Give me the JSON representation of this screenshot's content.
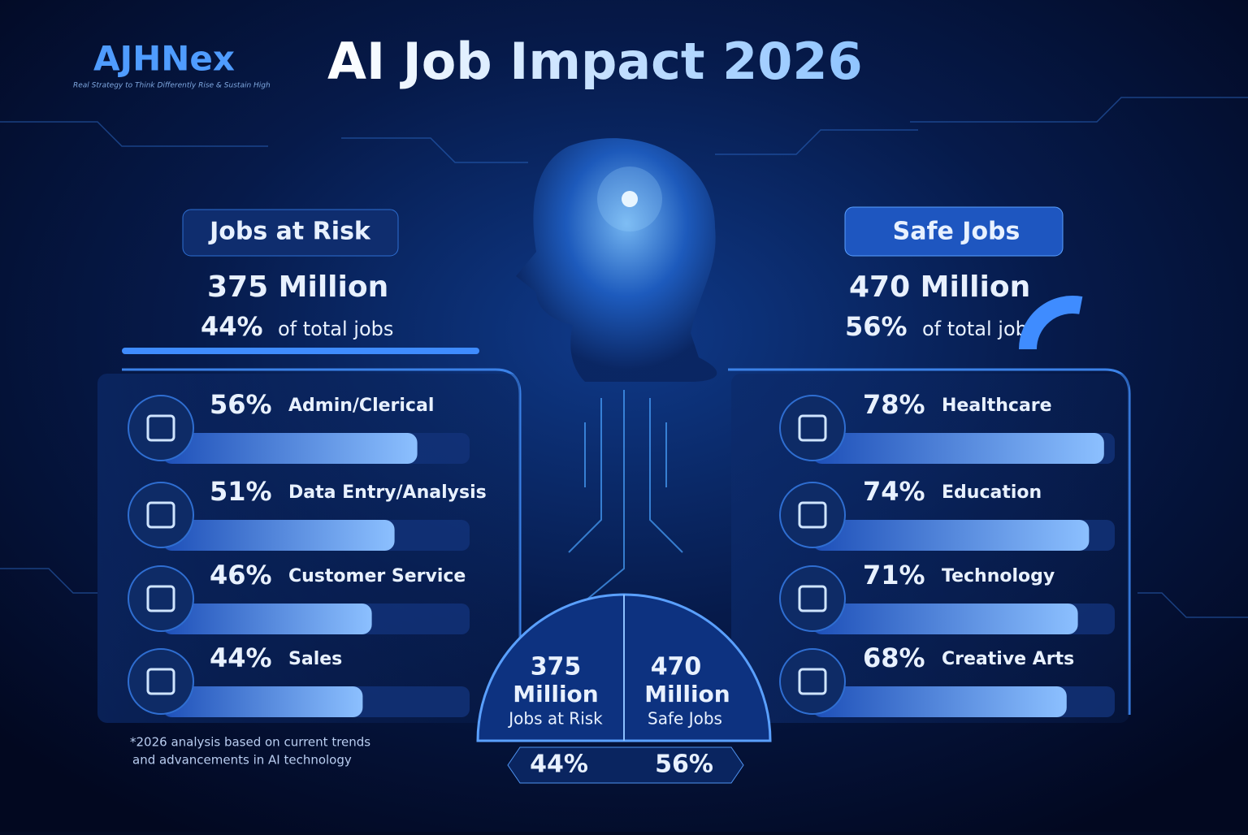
{
  "brand": {
    "name": "AJHNex",
    "tagline": "Real Strategy to Think Differently Rise & Sustain High"
  },
  "title": "AI Job Impact 2026",
  "at_risk": {
    "heading": "Jobs at Risk",
    "total": "375 Million",
    "share": {
      "value": 44,
      "label": "44%"
    },
    "share_text": "of total jobs",
    "sectors": [
      {
        "name": "Admin/Clerical",
        "share": {
          "value": 56,
          "label": "56%"
        }
      },
      {
        "name": "Data Entry/Analysis",
        "share": {
          "value": 51,
          "label": "51%"
        }
      },
      {
        "name": "Customer Service",
        "share": {
          "value": 46,
          "label": "46%"
        }
      },
      {
        "name": "Sales",
        "share": {
          "value": 44,
          "label": "44%"
        }
      }
    ]
  },
  "safe": {
    "heading": "Safe Jobs",
    "total": "470 Million",
    "share": {
      "value": 56,
      "label": "56%"
    },
    "share_text": "of total jobs",
    "sectors": [
      {
        "name": "Healthcare",
        "share": {
          "value": 78,
          "label": "78%"
        }
      },
      {
        "name": "Education",
        "share": {
          "value": 74,
          "label": "74%"
        }
      },
      {
        "name": "Technology",
        "share": {
          "value": 71,
          "label": "71%"
        }
      },
      {
        "name": "Creative Arts",
        "share": {
          "value": 68,
          "label": "68%"
        }
      }
    ]
  },
  "summary": {
    "risk": {
      "number": "375",
      "unit": "Million",
      "label": "Jobs at Risk",
      "share": "44%"
    },
    "safe": {
      "number": "470",
      "unit": "Million",
      "label": "Safe Jobs",
      "share": "56%"
    }
  },
  "footnote": [
    "*2026 analysis based on current trends",
    "and advancements in AI technology"
  ]
}
